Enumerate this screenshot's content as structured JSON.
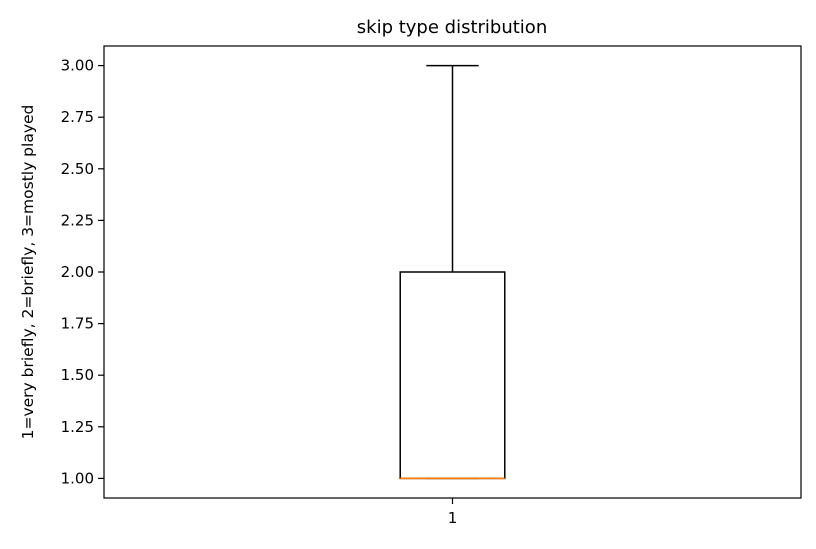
{
  "chart_data": {
    "type": "box",
    "title": "skip type distribution",
    "xlabel": "",
    "ylabel": "1=very briefly, 2=briefly, 3=mostly played",
    "categories": [
      "1"
    ],
    "boxes": [
      {
        "category": "1",
        "whisker_low": 1.0,
        "q1": 1.0,
        "median": 1.0,
        "q3": 2.0,
        "whisker_high": 3.0
      }
    ],
    "ylim": [
      0.905,
      3.095
    ],
    "yticks": [
      1.0,
      1.25,
      1.5,
      1.75,
      2.0,
      2.25,
      2.5,
      2.75,
      3.0
    ],
    "ytick_labels": [
      "1.00",
      "1.25",
      "1.50",
      "1.75",
      "2.00",
      "2.25",
      "2.50",
      "2.75",
      "3.00"
    ],
    "grid": false,
    "colors": {
      "box": "#000000",
      "median": "#ff7f0e",
      "axes": "#000000"
    }
  }
}
